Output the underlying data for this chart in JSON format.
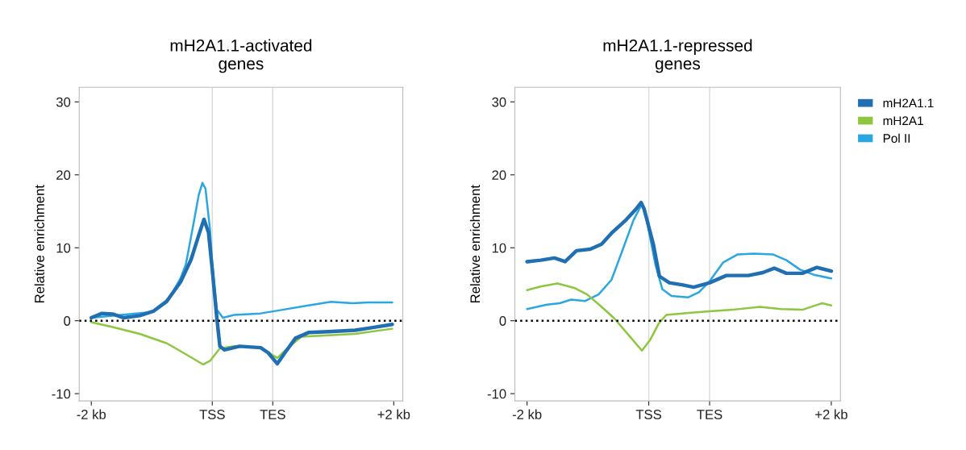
{
  "chart_data": [
    {
      "type": "line",
      "title": "mH2A1.1-activated\ngenes",
      "ylabel": "Relative enrichment",
      "xlim": [
        -2.16,
        2.12
      ],
      "ylim": [
        -11,
        32
      ],
      "xticks": [
        {
          "value": -2,
          "label": "-2 kb"
        },
        {
          "value": -0.4,
          "label": "TSS"
        },
        {
          "value": 0.4,
          "label": "TES"
        },
        {
          "value": 2,
          "label": "+2 kb"
        }
      ],
      "yticks": [
        -10,
        0,
        10,
        20,
        30
      ],
      "grid": false,
      "legend": false,
      "marker": "none",
      "line_style": "solid",
      "ref_lines": [
        {
          "axis": "x",
          "value": -0.4,
          "color": "#d9d9d9",
          "line_style": "solid"
        },
        {
          "axis": "x",
          "value": 0.4,
          "color": "#d9d9d9",
          "line_style": "solid"
        },
        {
          "axis": "y",
          "value": 0,
          "color": "#000000",
          "line_style": "dotted"
        }
      ],
      "series": [
        {
          "color": "#1f6fb2",
          "x": [
            -2.0,
            -1.86,
            -1.71,
            -1.57,
            -1.36,
            -1.18,
            -1.0,
            -0.82,
            -0.68,
            -0.58,
            -0.51,
            -0.45,
            -0.4,
            -0.34,
            -0.3,
            -0.24,
            -0.04,
            0.24,
            0.34,
            0.46,
            0.56,
            0.7,
            0.88,
            1.14,
            1.49,
            1.74,
            1.98
          ],
          "values": [
            0.4,
            1.0,
            0.9,
            0.4,
            0.7,
            1.3,
            2.7,
            5.3,
            8.4,
            11.7,
            13.9,
            12.1,
            7.0,
            0.4,
            -3.5,
            -4.0,
            -3.5,
            -3.7,
            -4.4,
            -5.9,
            -4.4,
            -2.4,
            -1.6,
            -1.5,
            -1.3,
            -0.9,
            -0.5
          ]
        },
        {
          "color": "#8dc63f",
          "x": [
            -2.0,
            -1.71,
            -1.36,
            -1.0,
            -0.75,
            -0.52,
            -0.43,
            -0.3,
            -0.11,
            0.24,
            0.46,
            0.6,
            0.78,
            1.14,
            1.49,
            1.98
          ],
          "values": [
            -0.2,
            -0.9,
            -1.8,
            -3.1,
            -4.6,
            -6.0,
            -5.5,
            -3.8,
            -3.5,
            -3.7,
            -5.1,
            -3.7,
            -2.2,
            -2.0,
            -1.8,
            -1.1
          ]
        },
        {
          "color": "#2aa7e1",
          "x": [
            -2.0,
            -1.18,
            -1.0,
            -0.82,
            -0.75,
            -0.65,
            -0.58,
            -0.53,
            -0.49,
            -0.43,
            -0.4,
            -0.34,
            -0.26,
            -0.11,
            0.24,
            0.53,
            0.82,
            1.17,
            1.46,
            1.66,
            1.98
          ],
          "values": [
            0.4,
            1.2,
            2.5,
            5.8,
            7.7,
            13.2,
            17.2,
            18.9,
            18.1,
            12.5,
            7.7,
            1.5,
            0.4,
            0.8,
            1.0,
            1.5,
            2.0,
            2.6,
            2.4,
            2.5,
            2.5
          ]
        }
      ]
    },
    {
      "type": "line",
      "title": "mH2A1.1-repressed\ngenes",
      "ylabel": "Relative enrichment",
      "xlim": [
        -2.16,
        2.12
      ],
      "ylim": [
        -11,
        32
      ],
      "xticks": [
        {
          "value": -2,
          "label": "-2 kb"
        },
        {
          "value": -0.4,
          "label": "TSS"
        },
        {
          "value": 0.4,
          "label": "TES"
        },
        {
          "value": 2,
          "label": "+2 kb"
        }
      ],
      "yticks": [
        -10,
        0,
        10,
        20,
        30
      ],
      "grid": false,
      "legend": "right",
      "marker": "none",
      "line_style": "solid",
      "ref_lines": [
        {
          "axis": "x",
          "value": -0.4,
          "color": "#d9d9d9",
          "line_style": "solid"
        },
        {
          "axis": "x",
          "value": 0.4,
          "color": "#d9d9d9",
          "line_style": "solid"
        },
        {
          "axis": "y",
          "value": 0,
          "color": "#000000",
          "line_style": "dotted"
        }
      ],
      "series": [
        {
          "name": "mH2A1.1",
          "color": "#1f6fb2",
          "x": [
            -2.0,
            -1.82,
            -1.64,
            -1.5,
            -1.35,
            -1.17,
            -1.02,
            -0.89,
            -0.7,
            -0.56,
            -0.5,
            -0.46,
            -0.34,
            -0.26,
            -0.13,
            0.05,
            0.19,
            0.4,
            0.62,
            0.91,
            1.1,
            1.25,
            1.41,
            1.62,
            1.81,
            2.0
          ],
          "values": [
            8.1,
            8.3,
            8.6,
            8.1,
            9.6,
            9.8,
            10.5,
            12.0,
            13.8,
            15.4,
            16.2,
            15.3,
            10.5,
            6.1,
            5.2,
            4.9,
            4.6,
            5.2,
            6.2,
            6.2,
            6.6,
            7.2,
            6.5,
            6.5,
            7.3,
            6.8
          ]
        },
        {
          "name": "mH2A1",
          "color": "#8dc63f",
          "x": [
            -2.0,
            -1.82,
            -1.6,
            -1.38,
            -1.21,
            -1.02,
            -0.85,
            -0.67,
            -0.49,
            -0.38,
            -0.27,
            -0.17,
            0.16,
            0.4,
            0.7,
            1.06,
            1.34,
            1.62,
            1.88,
            2.0
          ],
          "values": [
            4.2,
            4.7,
            5.1,
            4.5,
            3.6,
            1.9,
            0.3,
            -1.9,
            -4.1,
            -2.6,
            -0.4,
            0.8,
            1.1,
            1.3,
            1.5,
            1.9,
            1.6,
            1.5,
            2.4,
            2.1
          ]
        },
        {
          "name": "Pol II",
          "color": "#2aa7e1",
          "x": [
            -2.0,
            -1.74,
            -1.57,
            -1.42,
            -1.24,
            -1.06,
            -0.89,
            -0.74,
            -0.6,
            -0.49,
            -0.42,
            -0.31,
            -0.22,
            -0.1,
            0.12,
            0.26,
            0.4,
            0.58,
            0.77,
            0.98,
            1.23,
            1.41,
            1.59,
            1.77,
            2.0
          ],
          "values": [
            1.6,
            2.2,
            2.4,
            2.9,
            2.7,
            3.6,
            5.6,
            9.8,
            13.8,
            16.0,
            13.4,
            7.6,
            4.3,
            3.4,
            3.2,
            3.9,
            5.4,
            8.0,
            9.1,
            9.2,
            9.1,
            8.3,
            7.0,
            6.3,
            5.8
          ]
        }
      ]
    }
  ]
}
